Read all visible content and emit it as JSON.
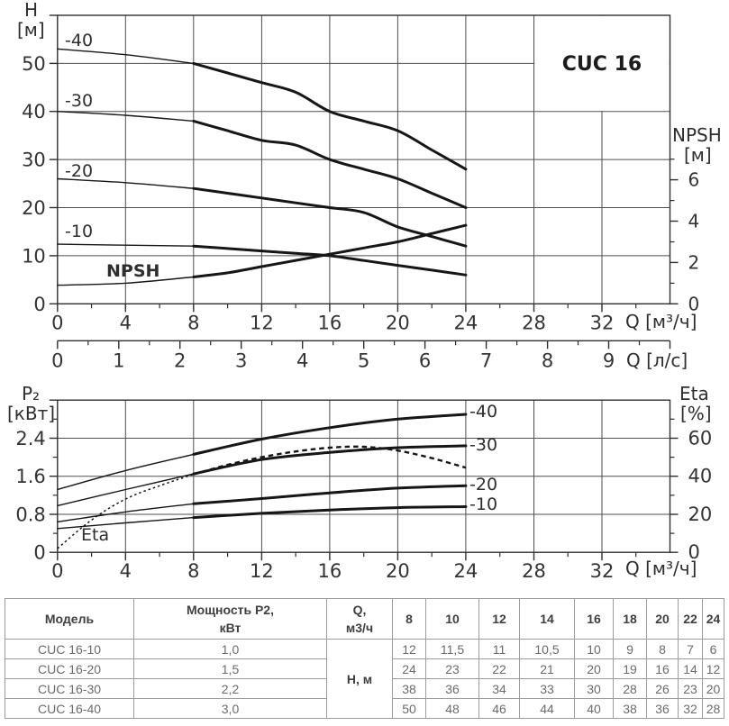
{
  "title": "CUC 16",
  "colors": {
    "grid": "#4f4f4f",
    "axis": "#2f2f2f",
    "curve": "#161616",
    "text": "#343434",
    "table_border": "#9b9b9b",
    "table_header_text": "#3f3f3f",
    "table_cell_text": "#6b6b6b"
  },
  "labels": {
    "top": {
      "y_title": "H",
      "y_unit": "[м]",
      "chart_title": "CUC 16",
      "y2_title": "NPSH",
      "y2_unit": "[м]",
      "x_unit": "Q [м³/ч]"
    },
    "ls_axis": {
      "x_unit": "Q [л/с]"
    },
    "bottom": {
      "y_title": "P₂",
      "y_unit": "[кВт]",
      "y2_title": "Eta",
      "y2_unit": "[%]",
      "x_unit": "Q [м³/ч]"
    }
  },
  "chart_data": [
    {
      "type": "line",
      "title": "CUC 16",
      "xlabel": "Q [м³/ч]",
      "ylabel": "H [м]",
      "y2label": "NPSH [м]",
      "xlim": [
        0,
        36
      ],
      "ylim": [
        0,
        60
      ],
      "grid": true,
      "x_ticks_major": [
        0,
        4,
        8,
        12,
        16,
        20,
        24,
        28,
        32
      ],
      "x_ticks_minor": [
        2,
        6,
        10,
        14,
        18,
        22,
        26,
        30,
        34
      ],
      "y_ticks_major": [
        0,
        10,
        20,
        30,
        40,
        50
      ],
      "y2_ticks_major": [
        0,
        2,
        4,
        6
      ],
      "y2_ticks_minor": [
        1,
        3,
        5,
        7
      ],
      "grid_x": [
        4,
        8,
        12,
        16,
        20,
        24,
        28,
        32
      ],
      "grid_y": [
        10,
        20,
        30,
        40,
        50
      ],
      "series": [
        {
          "name": "-40",
          "axis": "y",
          "bold_from": 8,
          "points": [
            [
              0,
              53
            ],
            [
              4,
              51.8
            ],
            [
              8,
              50
            ],
            [
              10,
              48
            ],
            [
              12,
              46
            ],
            [
              14,
              44
            ],
            [
              16,
              40
            ],
            [
              18,
              38
            ],
            [
              20,
              36
            ],
            [
              22,
              32
            ],
            [
              24,
              28
            ]
          ]
        },
        {
          "name": "-30",
          "axis": "y",
          "bold_from": 8,
          "points": [
            [
              0,
              40
            ],
            [
              4,
              39.2
            ],
            [
              8,
              38
            ],
            [
              10,
              36
            ],
            [
              12,
              34
            ],
            [
              14,
              33
            ],
            [
              16,
              30
            ],
            [
              18,
              28
            ],
            [
              20,
              26
            ],
            [
              22,
              23
            ],
            [
              24,
              20
            ]
          ]
        },
        {
          "name": "-20",
          "axis": "y",
          "bold_from": 8,
          "points": [
            [
              0,
              26
            ],
            [
              4,
              25.2
            ],
            [
              8,
              24
            ],
            [
              10,
              23
            ],
            [
              12,
              22
            ],
            [
              14,
              21
            ],
            [
              16,
              20
            ],
            [
              18,
              19
            ],
            [
              20,
              16
            ],
            [
              22,
              14
            ],
            [
              24,
              12
            ]
          ]
        },
        {
          "name": "-10",
          "axis": "y",
          "bold_from": 8,
          "points": [
            [
              0,
              12.4
            ],
            [
              4,
              12.2
            ],
            [
              8,
              12
            ],
            [
              10,
              11.5
            ],
            [
              12,
              11
            ],
            [
              14,
              10.5
            ],
            [
              16,
              10
            ],
            [
              18,
              9
            ],
            [
              20,
              8
            ],
            [
              22,
              7
            ],
            [
              24,
              6
            ]
          ]
        },
        {
          "name": "NPSH",
          "axis": "y2",
          "bold_from": 8,
          "points": [
            [
              0,
              0.9
            ],
            [
              4,
              1.0
            ],
            [
              8,
              1.3
            ],
            [
              10,
              1.5
            ],
            [
              12,
              1.8
            ],
            [
              14,
              2.1
            ],
            [
              16,
              2.4
            ],
            [
              18,
              2.7
            ],
            [
              20,
              3.0
            ],
            [
              22,
              3.4
            ],
            [
              24,
              3.8
            ]
          ]
        }
      ]
    },
    {
      "type": "line",
      "title": "",
      "xlabel": "Q [м³/ч]",
      "ylabel": "P2 [кВт]",
      "y2label": "Eta [%]",
      "xlim": [
        0,
        36
      ],
      "ylim": [
        0,
        3.2
      ],
      "y2lim": [
        0,
        80
      ],
      "grid": true,
      "x_ticks_major": [
        0,
        4,
        8,
        12,
        16,
        20,
        24,
        28,
        32
      ],
      "x_ticks_minor": [
        2,
        6,
        10,
        14,
        18,
        22,
        26,
        30,
        34
      ],
      "y_ticks_major": [
        0,
        0.8,
        1.6,
        2.4
      ],
      "y_ticks_minor": [
        0.4,
        1.2,
        2.0,
        2.8
      ],
      "y2_ticks_major": [
        0,
        20,
        40,
        60
      ],
      "y2_ticks_minor": [
        10,
        30,
        50,
        70
      ],
      "grid_x": [
        4,
        8,
        12,
        16,
        20,
        24,
        28,
        32
      ],
      "grid_y": [
        0.8,
        1.6,
        2.4
      ],
      "series": [
        {
          "name": "-40",
          "axis": "y",
          "bold_from": 8,
          "points": [
            [
              0,
              1.32
            ],
            [
              4,
              1.72
            ],
            [
              8,
              2.06
            ],
            [
              12,
              2.38
            ],
            [
              16,
              2.62
            ],
            [
              20,
              2.8
            ],
            [
              24,
              2.9
            ]
          ]
        },
        {
          "name": "-30",
          "axis": "y",
          "bold_from": 8,
          "points": [
            [
              0,
              0.98
            ],
            [
              4,
              1.32
            ],
            [
              8,
              1.65
            ],
            [
              12,
              1.95
            ],
            [
              16,
              2.1
            ],
            [
              20,
              2.2
            ],
            [
              24,
              2.24
            ]
          ]
        },
        {
          "name": "-20",
          "axis": "y",
          "bold_from": 8,
          "points": [
            [
              0,
              0.64
            ],
            [
              4,
              0.85
            ],
            [
              8,
              1.02
            ],
            [
              12,
              1.13
            ],
            [
              16,
              1.25
            ],
            [
              20,
              1.35
            ],
            [
              24,
              1.4
            ]
          ]
        },
        {
          "name": "-10",
          "axis": "y",
          "bold_from": 8,
          "points": [
            [
              0,
              0.5
            ],
            [
              4,
              0.62
            ],
            [
              8,
              0.73
            ],
            [
              12,
              0.82
            ],
            [
              16,
              0.89
            ],
            [
              20,
              0.94
            ],
            [
              24,
              0.96
            ]
          ]
        },
        {
          "name": "Eta",
          "axis": "y2",
          "style": "dotted",
          "bold_from": 8,
          "points": [
            [
              0,
              2
            ],
            [
              2,
              17
            ],
            [
              4,
              28
            ],
            [
              6,
              35
            ],
            [
              8,
              41
            ],
            [
              10,
              46
            ],
            [
              12,
              50
            ],
            [
              14,
              53
            ],
            [
              16,
              55
            ],
            [
              18,
              55.5
            ],
            [
              20,
              53.5
            ],
            [
              22,
              49.5
            ],
            [
              24,
              44.5
            ]
          ]
        }
      ]
    },
    {
      "type": "axis",
      "label": "Q [л/с]",
      "ticks_major": [
        0,
        1,
        2,
        3,
        4,
        5,
        6,
        7,
        8,
        9
      ],
      "ticks_minor": [
        0.5,
        1.5,
        2.5,
        3.5,
        4.5,
        5.5,
        6.5,
        7.5,
        8.5,
        9.5
      ],
      "end_tick": 10
    }
  ],
  "table": {
    "headers": [
      "Модель",
      "Мощность P2,\nкВт",
      "Q,\nм3/ч"
    ],
    "flow_columns": [
      "8",
      "10",
      "12",
      "14",
      "16",
      "18",
      "20",
      "22",
      "24"
    ],
    "merged_cell": "Н, м",
    "rows": [
      {
        "model": "CUC 16-10",
        "power": "1,0",
        "head": [
          "12",
          "11,5",
          "11",
          "10,5",
          "10",
          "9",
          "8",
          "7",
          "6"
        ]
      },
      {
        "model": "CUC 16-20",
        "power": "1,5",
        "head": [
          "24",
          "23",
          "22",
          "21",
          "20",
          "19",
          "16",
          "14",
          "12"
        ]
      },
      {
        "model": "CUC 16-30",
        "power": "2,2",
        "head": [
          "38",
          "36",
          "34",
          "33",
          "30",
          "28",
          "26",
          "23",
          "20"
        ]
      },
      {
        "model": "CUC 16-40",
        "power": "3,0",
        "head": [
          "50",
          "48",
          "46",
          "44",
          "40",
          "38",
          "36",
          "32",
          "28"
        ]
      }
    ]
  }
}
